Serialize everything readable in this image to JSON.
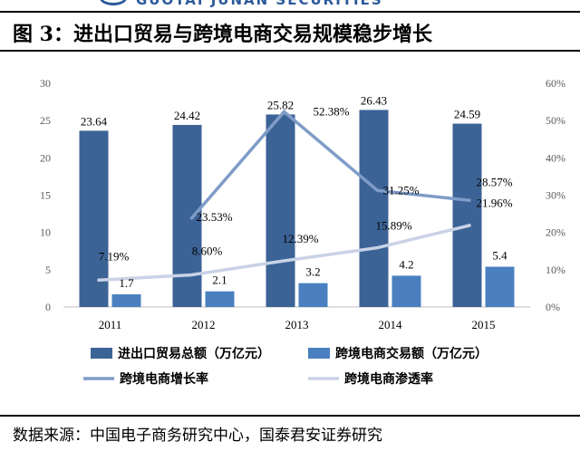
{
  "header": {
    "brand_text": "GUOTAI JUNAN SECURITIES",
    "figure_title": "图  3：进出口贸易与跨境电商交易规模稳步增长"
  },
  "footer": {
    "source": "数据来源：中国电子商务研究中心，国泰君安证券研究"
  },
  "colors": {
    "bar_trade": "#3c6396",
    "bar_ecommerce": "#4a80bf",
    "line_growth": "#7f9cc8",
    "line_penetration": "#c9d2e6",
    "axis_text": "#595959"
  },
  "chart_data": {
    "type": "bar",
    "categories": [
      "2011",
      "2012",
      "2013",
      "2014",
      "2015"
    ],
    "y_left": {
      "ticks": [
        "0",
        "5",
        "10",
        "15",
        "20",
        "25",
        "30"
      ],
      "ylim": [
        0,
        30
      ]
    },
    "y_right": {
      "ticks": [
        "0%",
        "10%",
        "20%",
        "30%",
        "40%",
        "50%",
        "60%"
      ],
      "ylim": [
        0,
        60
      ]
    },
    "grid": false,
    "legend_position": "bottom",
    "series": [
      {
        "name": "进出口贸易总额（万亿元）",
        "kind": "bar",
        "axis": "left",
        "values": [
          23.64,
          24.42,
          25.82,
          26.43,
          24.59
        ],
        "labels": [
          "23.64",
          "24.42",
          "25.82",
          "26.43",
          "24.59"
        ]
      },
      {
        "name": "跨境电商交易额（万亿元）",
        "kind": "bar",
        "axis": "left",
        "values": [
          1.7,
          2.1,
          3.2,
          4.2,
          5.4
        ],
        "labels": [
          "1.7",
          "2.1",
          "3.2",
          "4.2",
          "5.4"
        ]
      },
      {
        "name": "跨境电商增长率",
        "kind": "line",
        "axis": "right",
        "x": [
          "2012",
          "2013",
          "2014",
          "2015"
        ],
        "values": [
          23.53,
          52.38,
          31.25,
          28.57
        ],
        "labels": [
          "23.53%",
          "52.38%",
          "31.25%",
          "28.57%"
        ]
      },
      {
        "name": "跨境电商渗透率",
        "kind": "line",
        "axis": "right",
        "values": [
          7.19,
          8.6,
          12.39,
          15.89,
          21.96
        ],
        "labels": [
          "7.19%",
          "8.60%",
          "12.39%",
          "15.89%",
          "21.96%"
        ]
      }
    ]
  }
}
